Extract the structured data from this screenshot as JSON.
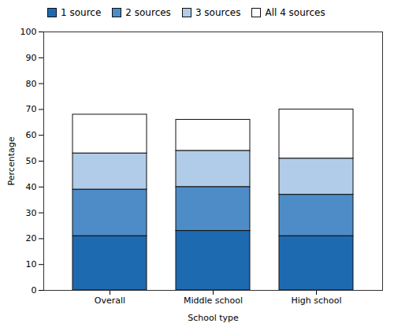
{
  "chart_data": {
    "type": "bar",
    "stacked": true,
    "categories": [
      "Overall",
      "Middle school",
      "High school"
    ],
    "series": [
      {
        "name": "1 source",
        "color": "#1e6ab0",
        "values": [
          21,
          23,
          21
        ]
      },
      {
        "name": "2 sources",
        "color": "#4e8cc8",
        "values": [
          18,
          17,
          16
        ]
      },
      {
        "name": "3 sources",
        "color": "#b0cce8",
        "values": [
          14,
          14,
          14
        ]
      },
      {
        "name": "All 4 sources",
        "color": "#ffffff",
        "values": [
          15,
          12,
          19
        ]
      }
    ],
    "xlabel": "School type",
    "ylabel": "Percentage",
    "ylim": [
      0,
      100
    ],
    "yticks": [
      0,
      10,
      20,
      30,
      40,
      50,
      60,
      70,
      80,
      90,
      100
    ],
    "grid": false,
    "legend": "upper left"
  }
}
